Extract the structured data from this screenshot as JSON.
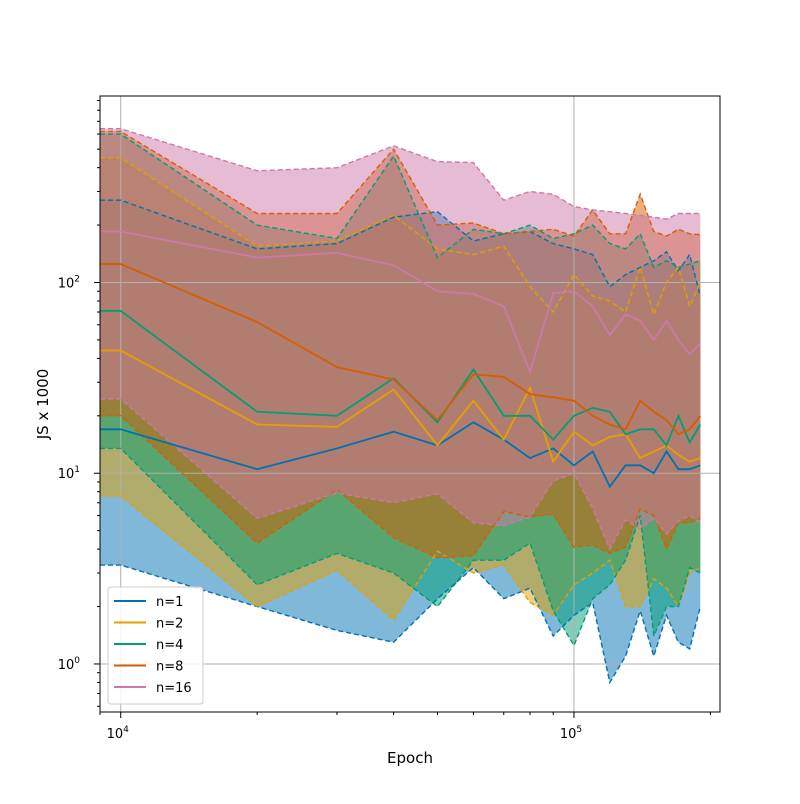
{
  "chart_data": {
    "type": "line",
    "xlabel": "Epoch",
    "ylabel": "JS x 1000",
    "xscale": "log",
    "yscale": "log",
    "xlim": [
      9000,
      210000
    ],
    "ylim": [
      0.56,
      950
    ],
    "grid": true,
    "legend_position": "lower-left",
    "x_major_ticks": [
      {
        "value": 10000,
        "base": "10",
        "exp": "4"
      },
      {
        "value": 100000,
        "base": "10",
        "exp": "5"
      }
    ],
    "y_major_ticks": [
      {
        "value": 1,
        "base": "10",
        "exp": "0"
      },
      {
        "value": 10,
        "base": "10",
        "exp": "1"
      },
      {
        "value": 100,
        "base": "10",
        "exp": "2"
      }
    ],
    "x": [
      9000,
      10000,
      20000,
      30000,
      40000,
      50000,
      60000,
      70000,
      80000,
      90000,
      100000,
      110000,
      120000,
      130000,
      140000,
      150000,
      160000,
      170000,
      180000,
      190000
    ],
    "series": [
      {
        "name": "n=1",
        "color": "#0072b2",
        "mean": [
          17,
          17,
          10.5,
          13.5,
          16.5,
          14,
          18.5,
          15,
          12,
          13.5,
          11,
          13,
          8.5,
          11,
          11,
          10,
          13,
          10.5,
          10.5,
          11
        ],
        "lower": [
          3.3,
          3.3,
          2,
          1.5,
          1.3,
          2.2,
          3.2,
          2.2,
          2.5,
          1.4,
          1.8,
          2.1,
          0.8,
          1.1,
          1.9,
          1.1,
          1.8,
          1.3,
          1.2,
          2
        ],
        "upper": [
          270,
          270,
          150,
          160,
          220,
          235,
          165,
          180,
          185,
          160,
          150,
          140,
          95,
          110,
          120,
          130,
          145,
          115,
          140,
          85
        ]
      },
      {
        "name": "n=2",
        "color": "#e69f00",
        "mean": [
          44,
          44,
          18,
          17.5,
          27.5,
          14,
          24,
          15,
          28,
          11.5,
          16.5,
          14,
          15.5,
          16,
          12,
          13,
          14,
          12.5,
          11.5,
          12
        ],
        "lower": [
          7.6,
          7.6,
          2,
          3.1,
          1.7,
          3.9,
          3,
          3.3,
          2.1,
          1.8,
          2.6,
          3,
          3.5,
          2,
          2,
          2.8,
          2.5,
          2,
          3,
          3.2
        ],
        "upper": [
          450,
          450,
          155,
          165,
          225,
          150,
          140,
          155,
          95,
          70,
          110,
          85,
          80,
          70,
          120,
          68,
          100,
          120,
          75,
          100
        ]
      },
      {
        "name": "n=4",
        "color": "#009e73",
        "mean": [
          71,
          71,
          21,
          20,
          31.5,
          18.5,
          35,
          20,
          20,
          15,
          20,
          22,
          21,
          16,
          17,
          17,
          14,
          20,
          14.5,
          18
        ],
        "lower": [
          13.5,
          13.5,
          2.6,
          3.8,
          3,
          2,
          3.5,
          3.5,
          4.3,
          1.9,
          1.25,
          2.2,
          2.6,
          3.5,
          6,
          1.4,
          2,
          2,
          3.2,
          3
        ],
        "upper": [
          600,
          600,
          200,
          170,
          460,
          135,
          190,
          180,
          200,
          170,
          180,
          200,
          160,
          150,
          180,
          120,
          130,
          120,
          125,
          130
        ]
      },
      {
        "name": "n=8",
        "color": "#d55e00",
        "mean": [
          125,
          125,
          62,
          36,
          31,
          19,
          33,
          32,
          26,
          25,
          24,
          20,
          18,
          17,
          24,
          21,
          19,
          16,
          17,
          20
        ],
        "lower": [
          20,
          20,
          4.3,
          8.2,
          4.6,
          3.6,
          3.7,
          6.3,
          5.9,
          6.1,
          4.1,
          4.2,
          3.8,
          4.1,
          6.5,
          6,
          4,
          5.5,
          5.5,
          5.8
        ],
        "upper": [
          620,
          620,
          230,
          230,
          500,
          200,
          205,
          180,
          185,
          190,
          175,
          240,
          180,
          180,
          290,
          185,
          175,
          190,
          180,
          178
        ]
      },
      {
        "name": "n=16",
        "color": "#cc79a7",
        "mean": [
          185,
          185,
          135,
          143,
          123,
          90,
          87,
          75,
          34,
          88,
          90,
          75,
          53,
          68,
          63,
          50,
          63,
          50,
          42,
          48
        ],
        "lower": [
          24.5,
          24.5,
          5.8,
          7.9,
          7,
          7.8,
          5.5,
          5.3,
          5.9,
          9.1,
          10,
          6.5,
          4,
          5.7,
          5.1,
          5.8,
          4.8,
          5.6,
          6,
          5.5
        ],
        "upper": [
          640,
          640,
          385,
          400,
          520,
          430,
          425,
          270,
          300,
          290,
          250,
          240,
          235,
          230,
          225,
          220,
          215,
          230,
          230,
          230
        ]
      }
    ]
  }
}
